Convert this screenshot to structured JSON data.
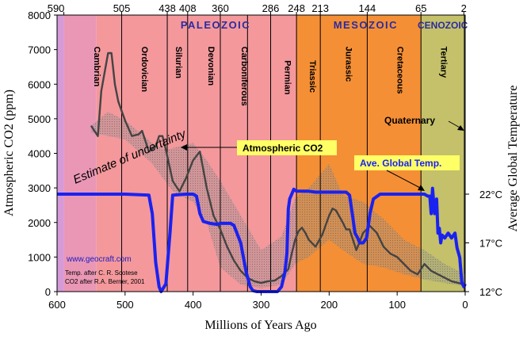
{
  "chart_data": {
    "type": "line",
    "xlabel": "Millions of Years Ago",
    "ylabel_left": "Atmospheric CO2 (ppm)",
    "ylabel_right": "Average Global Temperature",
    "xlim": [
      600,
      0
    ],
    "ylim": [
      0,
      8000
    ],
    "x_ticks": [
      "600",
      "500",
      "400",
      "300",
      "200",
      "100",
      "0"
    ],
    "y_ticks": [
      "0",
      "1000",
      "2000",
      "3000",
      "4000",
      "5000",
      "6000",
      "7000",
      "8000"
    ],
    "temp_ticks": [
      {
        "label": "12°C",
        "value": 12
      },
      {
        "label": "17°C",
        "value": 17
      },
      {
        "label": "22°C",
        "value": 22
      }
    ],
    "temp_range": [
      12,
      22
    ],
    "top_ticks": [
      "590",
      "505",
      "438",
      "408",
      "360",
      "286",
      "248",
      "213",
      "144",
      "65",
      "2"
    ],
    "eras": [
      {
        "name": "PALEOZOIC",
        "start": 542,
        "end": 248,
        "color": "#f4989c"
      },
      {
        "name": "MESOZOIC",
        "start": 248,
        "end": 65,
        "color": "#f58f35"
      },
      {
        "name": "CENOZOIC",
        "start": 65,
        "end": 0,
        "color": "#c4c16a"
      }
    ],
    "precambrian": {
      "start": 600,
      "end": 590,
      "color": "#d69ad8"
    },
    "precambrian_edge": {
      "start": 590,
      "end": 542,
      "color": "#ea97b6"
    },
    "period_lines": [
      505,
      438,
      408,
      360,
      320,
      286,
      248,
      213,
      144,
      65,
      2
    ],
    "periods": [
      {
        "name": "Cambrian",
        "x": 550,
        "y": 7000
      },
      {
        "name": "Ordovician",
        "x": 480,
        "y": 7000
      },
      {
        "name": "Silurian",
        "x": 430,
        "y": 7000
      },
      {
        "name": "Devonian",
        "x": 382,
        "y": 7000
      },
      {
        "name": "Carboniferous",
        "x": 333,
        "y": 7000
      },
      {
        "name": "Permian",
        "x": 270,
        "y": 6600
      },
      {
        "name": "Triassic",
        "x": 233,
        "y": 6600
      },
      {
        "name": "Jurassic",
        "x": 180,
        "y": 7000
      },
      {
        "name": "Cretaceous",
        "x": 104,
        "y": 7000
      },
      {
        "name": "Tertiary",
        "x": 40,
        "y": 7000
      }
    ],
    "series": [
      {
        "name": "Atmospheric CO2",
        "color": "#444444",
        "x": [
          550,
          540,
          535,
          525,
          520,
          515,
          510,
          500,
          490,
          480,
          475,
          465,
          455,
          450,
          445,
          440,
          430,
          420,
          410,
          400,
          390,
          380,
          370,
          360,
          350,
          340,
          330,
          320,
          310,
          300,
          290,
          280,
          270,
          260,
          255,
          250,
          245,
          240,
          235,
          230,
          220,
          210,
          200,
          195,
          190,
          180,
          175,
          170,
          160,
          150,
          140,
          130,
          120,
          110,
          100,
          90,
          80,
          70,
          60,
          50,
          40,
          30,
          20,
          10,
          0
        ],
        "y": [
          4800,
          4500,
          5800,
          6900,
          6900,
          6000,
          5500,
          4950,
          4500,
          4550,
          4650,
          4050,
          4200,
          4500,
          4500,
          4100,
          3200,
          2900,
          3300,
          3800,
          4050,
          3000,
          2200,
          1800,
          1300,
          900,
          600,
          400,
          300,
          250,
          300,
          320,
          450,
          650,
          1100,
          1500,
          1750,
          1850,
          1700,
          1500,
          1300,
          1650,
          2200,
          2400,
          2350,
          2000,
          1800,
          1800,
          1200,
          1700,
          1900,
          1700,
          1300,
          1100,
          1000,
          800,
          600,
          500,
          800,
          600,
          500,
          400,
          300,
          250,
          200
        ]
      },
      {
        "name": "Ave. Global Temp.",
        "color": "#1a22f0",
        "x": [
          600,
          500,
          465,
          460,
          455,
          450,
          447,
          440,
          434,
          430,
          410,
          400,
          395,
          390,
          385,
          375,
          365,
          360,
          345,
          340,
          330,
          322,
          316,
          312,
          306,
          300,
          290,
          276,
          270,
          265,
          262,
          260,
          258,
          255,
          252,
          248,
          245,
          240,
          230,
          220,
          210,
          200,
          175,
          170,
          166,
          162,
          158,
          155,
          150,
          145,
          140,
          135,
          125,
          100,
          80,
          70,
          65,
          60,
          55,
          52,
          50,
          48,
          45,
          42,
          40,
          38,
          36,
          34,
          30,
          25,
          20,
          15,
          12,
          8,
          5,
          2,
          0
        ],
        "y": [
          22,
          22,
          21.9,
          20,
          15,
          12.5,
          12,
          12.8,
          18,
          21.9,
          22,
          22,
          21.8,
          20,
          19.2,
          19,
          18.9,
          19,
          19,
          18.8,
          17,
          14,
          12.5,
          12.1,
          12,
          12,
          12,
          12,
          12.5,
          14,
          16,
          20.5,
          21.5,
          22,
          22.5,
          22.3,
          22.3,
          22.3,
          22.3,
          22.2,
          22.2,
          22.2,
          22.2,
          21.9,
          20,
          18,
          17.5,
          17,
          17,
          17.5,
          20,
          21.5,
          22,
          22,
          22,
          22,
          22,
          22,
          21.8,
          21.8,
          20,
          22.6,
          20,
          21.5,
          18,
          18.5,
          17,
          17.8,
          17.5,
          18,
          17.5,
          18,
          16.5,
          15.5,
          13,
          12.5,
          12.8
        ]
      }
    ],
    "annotations": {
      "co2_label": "Atmospheric CO2",
      "temp_label": "Ave. Global Temp.",
      "uncertainty": "Estimate of uncertainty",
      "quaternary": "Quaternary",
      "website": "www.geocraft.com",
      "credit1": "Temp. after C. R. Scotese",
      "credit2": "CO2 after R.A. Berner, 2001"
    },
    "colors": {
      "co2_label_bg": "#ffff66",
      "temp_label_bg": "#ffff66",
      "era_text": "#2b2ba0",
      "website_text": "#1c1cbf"
    }
  }
}
